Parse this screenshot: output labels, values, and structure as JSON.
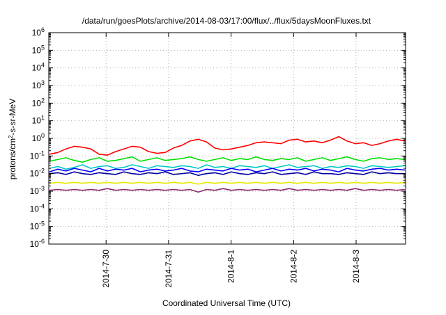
{
  "chart_data": {
    "type": "line",
    "title": "/data/run/goesPlots/archive/2014-08-03/17:00/flux/../flux/5daysMoonFluxes.txt",
    "xlabel": "Coordinated Universal Time (UTC)",
    "ylabel": "protons/cm²-s-sr-MeV",
    "ylabel_parts": {
      "pre": "protons/cm",
      "sup": "2",
      "post": "-s-sr-MeV"
    },
    "yscale": "log",
    "ylim_exp": [
      -6,
      6
    ],
    "y_ticks": [
      {
        "base": "10",
        "exp": "6"
      },
      {
        "base": "10",
        "exp": "5"
      },
      {
        "base": "10",
        "exp": "4"
      },
      {
        "base": "10",
        "exp": "3"
      },
      {
        "base": "10",
        "exp": "2"
      },
      {
        "base": "10",
        "exp": "1"
      },
      {
        "base": "10",
        "exp": "0"
      },
      {
        "base": "10",
        "exp": "-1"
      },
      {
        "base": "10",
        "exp": "-2"
      },
      {
        "base": "10",
        "exp": "-3"
      },
      {
        "base": "10",
        "exp": "-4"
      },
      {
        "base": "10",
        "exp": "-5"
      },
      {
        "base": "10",
        "exp": "-6"
      }
    ],
    "xlim": [
      "2014-07-29 02:00",
      "2014-08-03 19:00"
    ],
    "x_ticks": [
      "2014-7-30",
      "2014-7-31",
      "2014-8-1",
      "2014-8-2",
      "2014-8-3"
    ],
    "grid": true,
    "legend": "none",
    "series": [
      {
        "color": "#ff0000",
        "approx_log10": [
          -0.9,
          -0.8,
          -0.6,
          -0.45,
          -0.5,
          -0.6,
          -0.9,
          -0.95,
          -0.75,
          -0.6,
          -0.45,
          -0.5,
          -0.75,
          -0.85,
          -0.8,
          -0.55,
          -0.4,
          -0.15,
          -0.05,
          -0.2,
          -0.55,
          -0.65,
          -0.6,
          -0.5,
          -0.4,
          -0.25,
          -0.2,
          -0.25,
          -0.3,
          -0.1,
          -0.05,
          -0.2,
          -0.15,
          -0.25,
          -0.1,
          0.1,
          -0.15,
          -0.3,
          -0.25,
          -0.4,
          -0.3,
          -0.15,
          -0.05,
          -0.15
        ]
      },
      {
        "color": "#00e000",
        "approx_log10": [
          -1.3,
          -1.2,
          -1.1,
          -1.25,
          -1.35,
          -1.2,
          -1.1,
          -1.3,
          -1.25,
          -1.15,
          -1.05,
          -1.3,
          -1.2,
          -1.1,
          -1.25,
          -1.2,
          -1.15,
          -1.05,
          -1.2,
          -1.3,
          -1.2,
          -1.1,
          -1.25,
          -1.15,
          -1.2,
          -1.05,
          -1.2,
          -1.25,
          -1.15,
          -1.2,
          -1.1,
          -1.3,
          -1.2,
          -1.1,
          -1.25,
          -1.15,
          -1.05,
          -1.2,
          -1.3,
          -1.15,
          -1.1,
          -1.2,
          -1.15,
          -1.2
        ]
      },
      {
        "color": "#00c8c8",
        "approx_log10": [
          -1.7,
          -1.6,
          -1.75,
          -1.65,
          -1.5,
          -1.7,
          -1.6,
          -1.55,
          -1.7,
          -1.65,
          -1.5,
          -1.6,
          -1.7,
          -1.55,
          -1.6,
          -1.65,
          -1.55,
          -1.6,
          -1.7,
          -1.5,
          -1.65,
          -1.6,
          -1.7,
          -1.55,
          -1.6,
          -1.65,
          -1.55,
          -1.7,
          -1.6,
          -1.5,
          -1.65,
          -1.6,
          -1.55,
          -1.7,
          -1.6,
          -1.65,
          -1.55,
          -1.6,
          -1.7,
          -1.55,
          -1.6,
          -1.65,
          -1.6,
          -1.55
        ]
      },
      {
        "color": "#0000ff",
        "approx_log10": [
          -1.9,
          -1.75,
          -1.85,
          -1.7,
          -1.8,
          -1.9,
          -1.7,
          -1.85,
          -1.75,
          -1.8,
          -1.7,
          -1.9,
          -1.8,
          -1.75,
          -1.85,
          -1.8,
          -1.7,
          -1.85,
          -1.9,
          -1.75,
          -1.8,
          -1.85,
          -1.7,
          -1.8,
          -1.75,
          -1.9,
          -1.8,
          -1.7,
          -1.85,
          -1.75,
          -1.8,
          -1.7,
          -1.85,
          -1.75,
          -1.8,
          -1.9,
          -1.7,
          -1.8,
          -1.85,
          -1.75,
          -1.7,
          -1.8,
          -1.75,
          -1.8
        ]
      },
      {
        "color": "#0000a0",
        "approx_log10": [
          -2.0,
          -1.95,
          -2.05,
          -1.9,
          -2.0,
          -2.05,
          -1.95,
          -2.0,
          -2.05,
          -1.9,
          -2.0,
          -2.05,
          -1.95,
          -2.0,
          -1.9,
          -2.05,
          -2.0,
          -1.95,
          -2.1,
          -2.0,
          -1.95,
          -2.05,
          -1.9,
          -2.0,
          -2.05,
          -1.95,
          -2.0,
          -1.9,
          -2.05,
          -2.0,
          -1.95,
          -2.05,
          -1.9,
          -2.0,
          -2.0,
          -2.05,
          -1.95,
          -2.0,
          -2.05,
          -1.9,
          -2.0,
          -1.95,
          -2.0,
          -2.0
        ]
      },
      {
        "color": "#e8e800",
        "approx_log10": [
          -2.55,
          -2.5,
          -2.55,
          -2.5,
          -2.55,
          -2.5,
          -2.55,
          -2.5,
          -2.55,
          -2.5,
          -2.55,
          -2.5,
          -2.55,
          -2.5,
          -2.55,
          -2.5,
          -2.55,
          -2.5,
          -2.6,
          -2.5,
          -2.55,
          -2.5,
          -2.55,
          -2.5,
          -2.55,
          -2.5,
          -2.55,
          -2.5,
          -2.55,
          -2.5,
          -2.55,
          -2.5,
          -2.55,
          -2.5,
          -2.55,
          -2.5,
          -2.55,
          -2.5,
          -2.55,
          -2.5,
          -2.55,
          -2.5,
          -2.55,
          -2.5
        ]
      },
      {
        "color": "#8b2a6a",
        "approx_log10": [
          -2.95,
          -2.9,
          -2.95,
          -2.9,
          -2.95,
          -2.9,
          -2.95,
          -2.85,
          -2.95,
          -2.9,
          -2.95,
          -2.9,
          -2.95,
          -2.9,
          -2.95,
          -2.9,
          -2.95,
          -2.9,
          -3.05,
          -2.9,
          -2.95,
          -2.85,
          -2.95,
          -2.9,
          -2.95,
          -2.9,
          -2.95,
          -2.9,
          -2.95,
          -2.85,
          -2.95,
          -2.9,
          -2.95,
          -2.9,
          -2.95,
          -2.9,
          -2.95,
          -2.85,
          -2.95,
          -2.9,
          -2.95,
          -2.9,
          -2.95,
          -2.9
        ]
      }
    ]
  }
}
